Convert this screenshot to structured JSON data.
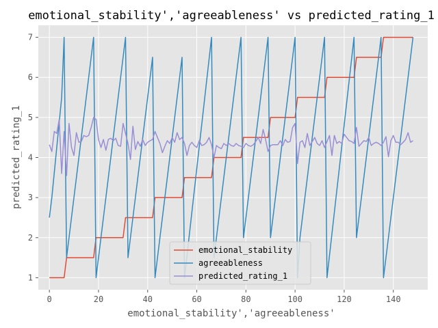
{
  "chart_data": {
    "type": "line",
    "title": "emotional_stability','agreeableness' vs predicted_rating_1",
    "xlabel": "emotional_stability','agreeableness'",
    "ylabel": "predicted_rating_1",
    "xlim": [
      -4.5,
      154
    ],
    "ylim": [
      0.7,
      7.3
    ],
    "xticks": [
      0,
      20,
      40,
      60,
      80,
      100,
      120,
      140
    ],
    "yticks": [
      1,
      2,
      3,
      4,
      5,
      6,
      7
    ],
    "grid": true,
    "style": "ggplot",
    "legend": {
      "placement": "lower-center"
    },
    "series": [
      {
        "name": "emotional_stability",
        "color": "#E24A33",
        "points": [
          [
            0,
            1
          ],
          [
            6,
            1
          ],
          [
            7,
            1.5
          ],
          [
            18,
            1.5
          ],
          [
            19,
            2
          ],
          [
            30,
            2
          ],
          [
            31,
            2.5
          ],
          [
            42,
            2.5
          ],
          [
            43,
            3
          ],
          [
            54,
            3
          ],
          [
            55,
            3.5
          ],
          [
            66,
            3.5
          ],
          [
            67,
            4
          ],
          [
            78,
            4
          ],
          [
            79,
            4.5
          ],
          [
            89,
            4.5
          ],
          [
            90,
            5
          ],
          [
            100,
            5
          ],
          [
            101,
            5.5
          ],
          [
            112,
            5.5
          ],
          [
            113,
            6
          ],
          [
            124,
            6
          ],
          [
            125,
            6.5
          ],
          [
            135,
            6.5
          ],
          [
            136,
            7
          ],
          [
            148,
            7
          ]
        ]
      },
      {
        "name": "agreeableness",
        "color": "#348ABD",
        "points": [
          [
            0,
            2.5
          ],
          [
            1,
            3
          ],
          [
            5,
            5.5
          ],
          [
            6,
            7
          ],
          [
            7,
            1.5
          ],
          [
            18,
            7
          ],
          [
            19,
            1
          ],
          [
            31,
            7
          ],
          [
            32,
            1.5
          ],
          [
            42,
            6.5
          ],
          [
            43,
            1
          ],
          [
            54,
            6.5
          ],
          [
            55,
            1
          ],
          [
            66,
            7
          ],
          [
            67,
            1.5
          ],
          [
            78,
            7
          ],
          [
            79,
            2
          ],
          [
            89,
            7
          ],
          [
            90,
            2
          ],
          [
            100,
            7
          ],
          [
            101,
            1
          ],
          [
            102,
            2
          ],
          [
            112,
            7
          ],
          [
            113,
            1
          ],
          [
            124,
            7
          ],
          [
            125,
            2
          ],
          [
            135,
            7
          ],
          [
            136,
            1
          ],
          [
            148,
            7
          ]
        ]
      },
      {
        "name": "predicted_rating_1",
        "color": "#988ED5",
        "points": [
          [
            0,
            4.32
          ],
          [
            1,
            4.15
          ],
          [
            2,
            4.65
          ],
          [
            3,
            4.6
          ],
          [
            4,
            4.95
          ],
          [
            5,
            3.6
          ],
          [
            6,
            4.65
          ],
          [
            7,
            3.55
          ],
          [
            8,
            4.85
          ],
          [
            9,
            4.25
          ],
          [
            10,
            4.05
          ],
          [
            11,
            4.62
          ],
          [
            12,
            4.38
          ],
          [
            13,
            4.4
          ],
          [
            14,
            4.55
          ],
          [
            15,
            4.52
          ],
          [
            16,
            4.55
          ],
          [
            17,
            4.75
          ],
          [
            18,
            5.0
          ],
          [
            19,
            4.95
          ],
          [
            20,
            4.45
          ],
          [
            21,
            4.25
          ],
          [
            22,
            4.45
          ],
          [
            23,
            4.18
          ],
          [
            24,
            4.45
          ],
          [
            25,
            4.48
          ],
          [
            26,
            4.42
          ],
          [
            27,
            4.48
          ],
          [
            28,
            4.3
          ],
          [
            29,
            4.28
          ],
          [
            30,
            4.85
          ],
          [
            31,
            4.6
          ],
          [
            32,
            4.35
          ],
          [
            33,
            3.95
          ],
          [
            34,
            4.78
          ],
          [
            35,
            4.2
          ],
          [
            36,
            4.4
          ],
          [
            37,
            4.28
          ],
          [
            38,
            4.45
          ],
          [
            39,
            4.3
          ],
          [
            40,
            4.38
          ],
          [
            41,
            4.42
          ],
          [
            42,
            4.45
          ],
          [
            43,
            4.65
          ],
          [
            44,
            4.5
          ],
          [
            45,
            4.35
          ],
          [
            46,
            4.12
          ],
          [
            47,
            4.28
          ],
          [
            48,
            4.42
          ],
          [
            49,
            4.35
          ],
          [
            50,
            4.5
          ],
          [
            51,
            4.38
          ],
          [
            52,
            4.62
          ],
          [
            53,
            4.45
          ],
          [
            54,
            4.5
          ],
          [
            55,
            4.35
          ],
          [
            56,
            4.05
          ],
          [
            57,
            4.3
          ],
          [
            58,
            4.38
          ],
          [
            59,
            4.3
          ],
          [
            60,
            4.25
          ],
          [
            61,
            4.42
          ],
          [
            62,
            4.3
          ],
          [
            63,
            4.32
          ],
          [
            64,
            4.38
          ],
          [
            65,
            4.5
          ],
          [
            66,
            4.32
          ],
          [
            67,
            4.0
          ],
          [
            68,
            4.3
          ],
          [
            69,
            4.25
          ],
          [
            70,
            4.22
          ],
          [
            71,
            4.35
          ],
          [
            72,
            4.3
          ],
          [
            73,
            4.35
          ],
          [
            74,
            4.3
          ],
          [
            75,
            4.28
          ],
          [
            76,
            4.35
          ],
          [
            77,
            4.3
          ],
          [
            78,
            4.28
          ],
          [
            79,
            4.25
          ],
          [
            80,
            4.35
          ],
          [
            81,
            4.3
          ],
          [
            82,
            4.28
          ],
          [
            83,
            4.32
          ],
          [
            84,
            4.4
          ],
          [
            85,
            4.5
          ],
          [
            86,
            4.35
          ],
          [
            87,
            4.7
          ],
          [
            88,
            4.45
          ],
          [
            89,
            4.15
          ],
          [
            90,
            4.3
          ],
          [
            91,
            4.32
          ],
          [
            92,
            4.32
          ],
          [
            93,
            4.32
          ],
          [
            94,
            4.42
          ],
          [
            95,
            4.3
          ],
          [
            96,
            4.45
          ],
          [
            97,
            4.38
          ],
          [
            98,
            4.4
          ],
          [
            99,
            4.75
          ],
          [
            100,
            4.85
          ],
          [
            101,
            3.85
          ],
          [
            102,
            4.38
          ],
          [
            103,
            4.42
          ],
          [
            104,
            4.25
          ],
          [
            105,
            4.6
          ],
          [
            106,
            4.3
          ],
          [
            107,
            4.4
          ],
          [
            108,
            4.5
          ],
          [
            109,
            4.35
          ],
          [
            110,
            4.3
          ],
          [
            111,
            4.42
          ],
          [
            112,
            4.25
          ],
          [
            113,
            4.4
          ],
          [
            114,
            4.55
          ],
          [
            115,
            4.05
          ],
          [
            116,
            4.55
          ],
          [
            117,
            4.35
          ],
          [
            118,
            4.4
          ],
          [
            119,
            4.35
          ],
          [
            120,
            4.58
          ],
          [
            121,
            4.5
          ],
          [
            122,
            4.42
          ],
          [
            123,
            4.4
          ],
          [
            124,
            4.35
          ],
          [
            125,
            4.75
          ],
          [
            126,
            4.28
          ],
          [
            127,
            4.35
          ],
          [
            128,
            4.42
          ],
          [
            129,
            4.4
          ],
          [
            130,
            4.5
          ],
          [
            131,
            4.3
          ],
          [
            132,
            4.35
          ],
          [
            133,
            4.38
          ],
          [
            134,
            4.35
          ],
          [
            135,
            4.3
          ],
          [
            136,
            4.38
          ],
          [
            137,
            4.52
          ],
          [
            138,
            4.02
          ],
          [
            139,
            4.42
          ],
          [
            140,
            4.55
          ],
          [
            141,
            4.38
          ],
          [
            142,
            4.38
          ],
          [
            143,
            4.32
          ],
          [
            144,
            4.38
          ],
          [
            145,
            4.45
          ],
          [
            146,
            4.62
          ],
          [
            147,
            4.38
          ],
          [
            148,
            4.42
          ]
        ]
      }
    ]
  }
}
